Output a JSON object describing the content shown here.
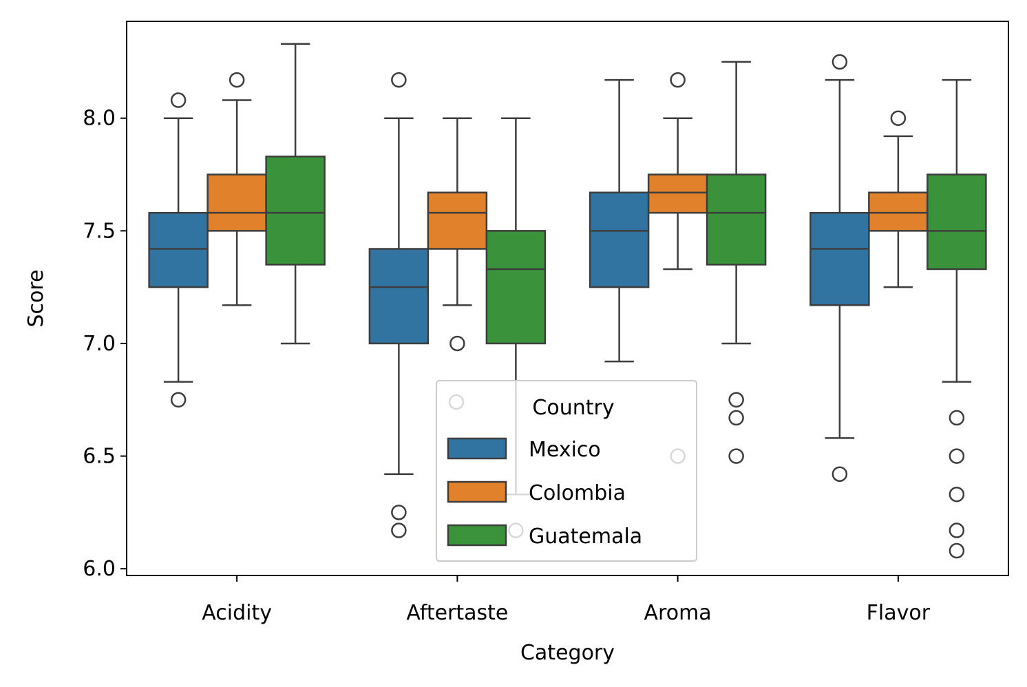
{
  "chart_data": {
    "type": "box",
    "title": "",
    "xlabel": "Category",
    "ylabel": "Score",
    "categories": [
      "Acidity",
      "Aftertaste",
      "Aroma",
      "Flavor"
    ],
    "ylim": [
      5.97,
      8.43
    ],
    "yticks": [
      "6.0",
      "6.5",
      "7.0",
      "7.5",
      "8.0"
    ],
    "legend": {
      "title": "Country",
      "placement": "lower center"
    },
    "series": [
      {
        "name": "Mexico",
        "color": "#3274a1",
        "boxes": [
          {
            "whislo": 6.83,
            "q1": 7.25,
            "med": 7.42,
            "q3": 7.58,
            "whishi": 8.0,
            "fliers": [
              6.75,
              8.08
            ]
          },
          {
            "whislo": 6.42,
            "q1": 7.0,
            "med": 7.25,
            "q3": 7.42,
            "whishi": 8.0,
            "fliers": [
              6.17,
              6.25,
              8.17
            ]
          },
          {
            "whislo": 6.92,
            "q1": 7.25,
            "med": 7.5,
            "q3": 7.67,
            "whishi": 8.17,
            "fliers": []
          },
          {
            "whislo": 6.58,
            "q1": 7.17,
            "med": 7.42,
            "q3": 7.58,
            "whishi": 8.17,
            "fliers": [
              6.42,
              8.25
            ]
          }
        ]
      },
      {
        "name": "Colombia",
        "color": "#e1812c",
        "boxes": [
          {
            "whislo": 7.17,
            "q1": 7.5,
            "med": 7.58,
            "q3": 7.75,
            "whishi": 8.08,
            "fliers": [
              8.17
            ]
          },
          {
            "whislo": 7.17,
            "q1": 7.42,
            "med": 7.58,
            "q3": 7.67,
            "whishi": 8.0,
            "fliers": [
              7.0
            ]
          },
          {
            "whislo": 7.33,
            "q1": 7.58,
            "med": 7.67,
            "q3": 7.75,
            "whishi": 8.0,
            "fliers": [
              6.5,
              8.17
            ]
          },
          {
            "whislo": 7.25,
            "q1": 7.5,
            "med": 7.58,
            "q3": 7.67,
            "whishi": 7.92,
            "fliers": [
              8.0
            ]
          }
        ]
      },
      {
        "name": "Guatemala",
        "color": "#3a923a",
        "boxes": [
          {
            "whislo": 7.0,
            "q1": 7.35,
            "med": 7.58,
            "q3": 7.83,
            "whishi": 8.33,
            "fliers": []
          },
          {
            "whislo": 6.33,
            "q1": 7.0,
            "med": 7.33,
            "q3": 7.5,
            "whishi": 8.0,
            "fliers": [
              6.17
            ]
          },
          {
            "whislo": 7.0,
            "q1": 7.35,
            "med": 7.58,
            "q3": 7.75,
            "whishi": 8.25,
            "fliers": [
              6.5,
              6.67,
              6.75
            ]
          },
          {
            "whislo": 6.83,
            "q1": 7.33,
            "med": 7.5,
            "q3": 7.75,
            "whishi": 8.17,
            "fliers": [
              6.08,
              6.17,
              6.33,
              6.5,
              6.67
            ]
          }
        ]
      }
    ],
    "grid": false
  }
}
